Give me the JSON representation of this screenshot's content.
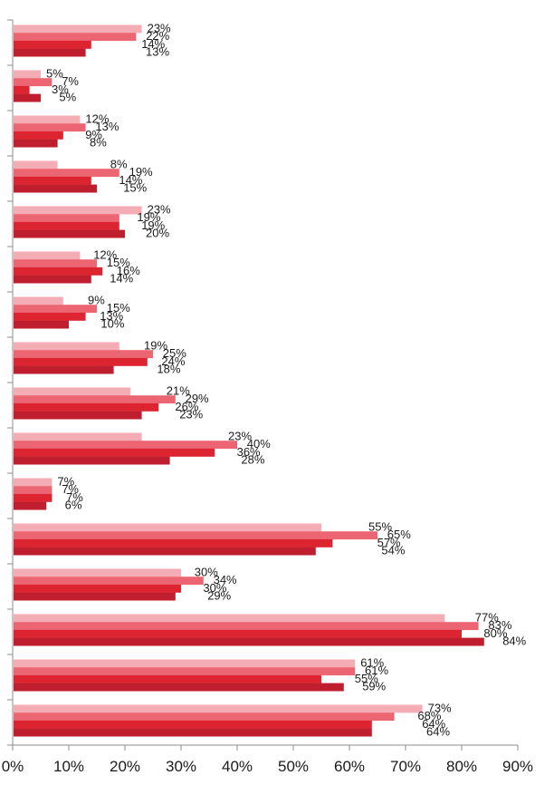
{
  "chart_data": {
    "type": "bar",
    "orientation": "horizontal",
    "title": "",
    "xlabel": "",
    "ylabel": "",
    "xlim": [
      0,
      90
    ],
    "x_ticks": [
      "0%",
      "10%",
      "20%",
      "30%",
      "40%",
      "50%",
      "60%",
      "70%",
      "80%",
      "90%"
    ],
    "value_format": "percent",
    "grid": false,
    "legend": "none",
    "series_colors": [
      "#f4adb4",
      "#eb6672",
      "#dc2530",
      "#be1e2d"
    ],
    "groups": [
      [
        23,
        22,
        14,
        13
      ],
      [
        5,
        7,
        3,
        5
      ],
      [
        12,
        13,
        9,
        8
      ],
      [
        8,
        19,
        14,
        15
      ],
      [
        23,
        19,
        19,
        20
      ],
      [
        12,
        15,
        16,
        14
      ],
      [
        9,
        15,
        13,
        10
      ],
      [
        19,
        25,
        24,
        18
      ],
      [
        21,
        29,
        26,
        23
      ],
      [
        23,
        40,
        36,
        28
      ],
      [
        7,
        7,
        7,
        6
      ],
      [
        55,
        65,
        57,
        54
      ],
      [
        30,
        34,
        30,
        29
      ],
      [
        77,
        83,
        80,
        84
      ],
      [
        61,
        61,
        55,
        59
      ],
      [
        73,
        68,
        64,
        64
      ]
    ]
  }
}
